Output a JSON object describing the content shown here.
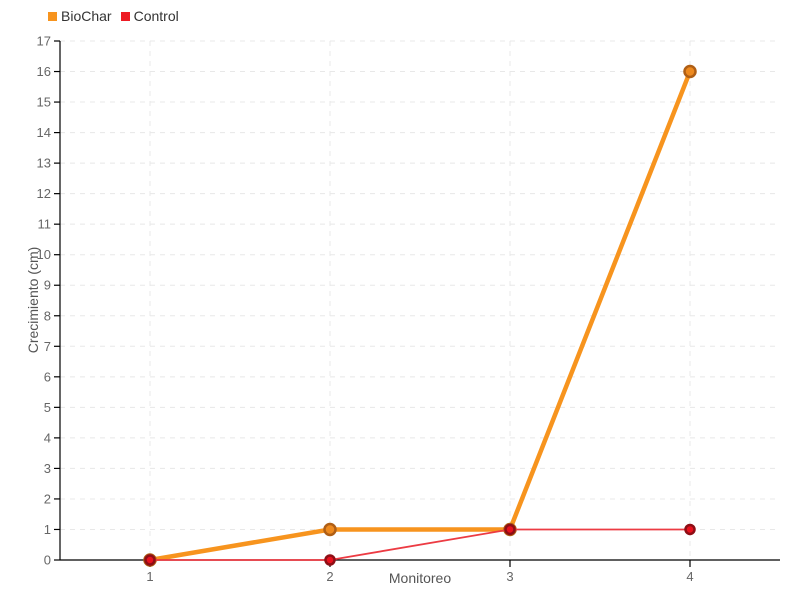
{
  "page": {
    "background": "#ffffff"
  },
  "chart_data": {
    "type": "line",
    "title": "",
    "xlabel": "Monitoreo",
    "ylabel": "Crecimiento (cm)",
    "x_ticks": [
      1,
      2,
      3,
      4
    ],
    "xlim": [
      0.5,
      4.5
    ],
    "ylim": [
      0,
      17
    ],
    "y_tick_step": 1,
    "grid": true,
    "grid_color": "#e8e8e8",
    "axis_color": "#000000",
    "tick_label_color": "#666666",
    "axis_label_color": "#555555",
    "legend_position": "top-left",
    "legend_text_color": "#333333",
    "series": [
      {
        "name": "BioChar",
        "x": [
          1,
          2,
          3,
          4
        ],
        "values": [
          0,
          1,
          1,
          16
        ],
        "color": "#F7941E",
        "marker_fill": "#EE8A1F",
        "marker_stroke": "#B05F15",
        "marker_radius": 5.5,
        "marker_stroke_width": 2.5,
        "line_width": 4.5,
        "swatch_color": "#F7941E"
      },
      {
        "name": "Control",
        "x": [
          1,
          2,
          3,
          4
        ],
        "values": [
          0,
          0,
          1,
          1
        ],
        "color": "#EC3B43",
        "marker_fill": "#E8111E",
        "marker_stroke": "#8F0E15",
        "marker_radius": 4.5,
        "marker_stroke_width": 2.5,
        "line_width": 1.8,
        "swatch_color": "#ED1C24"
      }
    ]
  }
}
